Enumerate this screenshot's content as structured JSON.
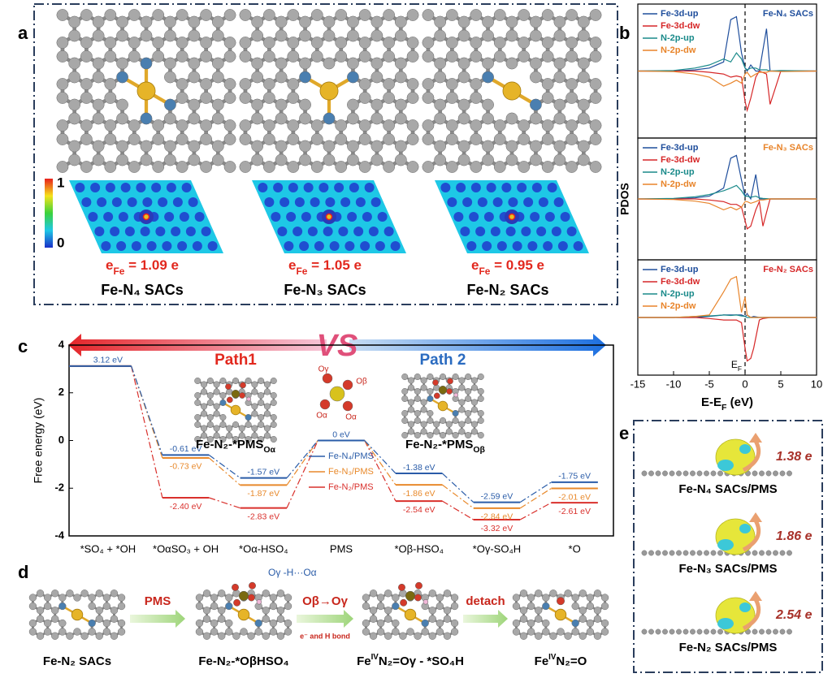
{
  "panel_labels": [
    "a",
    "b",
    "c",
    "d",
    "e"
  ],
  "panel_a": {
    "colorbar": {
      "max": "1",
      "min": "0"
    },
    "structures": [
      {
        "name": "Fe-N₄ SACs",
        "charge": {
          "symbol": "e",
          "subscript": "Fe",
          "text": " = 1.09 e"
        }
      },
      {
        "name": "Fe-N₃ SACs",
        "charge": {
          "symbol": "e",
          "subscript": "Fe",
          "text": " = 1.05 e"
        }
      },
      {
        "name": "Fe-N₂ SACs",
        "charge": {
          "symbol": "e",
          "subscript": "Fe",
          "text": " = 0.95 e"
        }
      }
    ]
  },
  "panel_c": {
    "vs": "VS",
    "path1": "Path1",
    "path2": "Path 2",
    "inset1": {
      "text": "Fe-N₂-*PMS",
      "sub": "Oα"
    },
    "inset2": {
      "text": "Fe-N₂-*PMS",
      "sub": "Oβ"
    },
    "pms_labels": [
      "Oγ",
      "Oβ",
      "Oα",
      "Oα"
    ]
  },
  "panel_d": {
    "annotation": "Oγ -H···Oα",
    "arrows": [
      "PMS",
      "Oβ→Oγ",
      "detach"
    ],
    "arrow_note": "e⁻ and H bond",
    "steps": [
      {
        "text": "Fe-N₂ SACs"
      },
      {
        "text": "Fe-N₂-*OβHSO₄"
      },
      {
        "text": "Fe",
        "sup": "IV",
        "rest": "N₂=Oγ - *SO₄H"
      },
      {
        "text": "Fe",
        "sup": "IV",
        "rest": "N₂=O"
      }
    ]
  },
  "panel_e": {
    "items": [
      {
        "name": "Fe-N₄ SACs/PMS",
        "charge": "1.38 e"
      },
      {
        "name": "Fe-N₃ SACs/PMS",
        "charge": "1.86 e"
      },
      {
        "name": "Fe-N₂ SACs/PMS",
        "charge": "2.54 e"
      }
    ]
  },
  "chart_data": [
    {
      "type": "line",
      "title": "Fe-N₄ SACs",
      "title_color": "#1f4e9c",
      "xlim": [
        -15,
        10
      ],
      "ylim": [
        -1,
        1
      ],
      "x": [
        -15,
        -10,
        -7,
        -5,
        -3,
        -2,
        -1.2,
        -0.5,
        0,
        0.3,
        0.8,
        1.5,
        2,
        3,
        3.5,
        5,
        10
      ],
      "series": [
        {
          "name": "Fe-3d-up",
          "color": "#1f4e9c",
          "values": [
            0,
            0,
            0.02,
            0.05,
            0.15,
            0.85,
            0.9,
            0.3,
            0.05,
            0,
            0.1,
            0,
            0,
            0.7,
            0,
            0,
            0
          ]
        },
        {
          "name": "Fe-3d-dw",
          "color": "#d62728",
          "values": [
            0,
            0,
            0,
            -0.02,
            -0.05,
            -0.1,
            -0.08,
            -0.1,
            -0.5,
            -0.65,
            -0.45,
            -0.1,
            0,
            -0.05,
            -0.55,
            0,
            0
          ]
        },
        {
          "name": "N-2p-up",
          "color": "#1a8a8a",
          "values": [
            0,
            0.01,
            0.05,
            0.1,
            0.2,
            0.15,
            0.3,
            0.2,
            0.05,
            0.02,
            0.05,
            0.05,
            0.02,
            0.02,
            0,
            0.01,
            0
          ]
        },
        {
          "name": "N-2p-dw",
          "color": "#e8842a",
          "values": [
            0,
            -0.01,
            -0.05,
            -0.1,
            -0.25,
            -0.2,
            -0.15,
            -0.2,
            -0.05,
            -0.02,
            -0.1,
            -0.05,
            -0.02,
            -0.02,
            0,
            -0.01,
            0
          ]
        }
      ]
    },
    {
      "type": "line",
      "title": "Fe-N₃ SACs",
      "title_color": "#e8842a",
      "ylabel": "PDOS",
      "xlim": [
        -15,
        10
      ],
      "ylim": [
        -1,
        1
      ],
      "x": [
        -15,
        -10,
        -7,
        -5,
        -3,
        -2,
        -1.2,
        -0.5,
        0,
        0.3,
        0.8,
        1.5,
        2,
        2.5,
        3.5,
        5,
        10
      ],
      "series": [
        {
          "name": "Fe-3d-up",
          "color": "#1f4e9c",
          "values": [
            0,
            0,
            0.02,
            0.05,
            0.2,
            0.75,
            0.8,
            0.35,
            0.05,
            0.1,
            0,
            0.45,
            0,
            0,
            0,
            0,
            0
          ]
        },
        {
          "name": "Fe-3d-dw",
          "color": "#d62728",
          "values": [
            0,
            0,
            0,
            -0.02,
            -0.05,
            -0.1,
            -0.1,
            -0.15,
            -0.4,
            -0.55,
            -0.5,
            -0.2,
            -0.05,
            -0.5,
            0,
            0,
            0
          ]
        },
        {
          "name": "N-2p-up",
          "color": "#1a8a8a",
          "values": [
            0,
            0.01,
            0.04,
            0.08,
            0.15,
            0.2,
            0.25,
            0.15,
            0.05,
            0.05,
            0.03,
            0.05,
            0.02,
            0.01,
            0,
            0,
            0
          ]
        },
        {
          "name": "N-2p-dw",
          "color": "#e8842a",
          "values": [
            0,
            -0.01,
            -0.04,
            -0.08,
            -0.2,
            -0.15,
            -0.2,
            -0.15,
            -0.05,
            -0.05,
            -0.08,
            -0.05,
            -0.02,
            -0.02,
            0,
            0,
            0
          ]
        }
      ]
    },
    {
      "type": "line",
      "title": "Fe-N₂ SACs",
      "title_color": "#d62728",
      "xlim": [
        -15,
        10
      ],
      "ylim": [
        -1,
        1
      ],
      "xticks": [
        -15,
        -10,
        -5,
        0,
        5,
        10
      ],
      "xlabel": {
        "text": "E-E",
        "sub": "F",
        "rest": " (eV)"
      },
      "annotation": {
        "text": "E",
        "sub": "F"
      },
      "x": [
        -15,
        -10,
        -7,
        -5,
        -3,
        -2,
        -1.2,
        -0.5,
        0,
        0.3,
        0.8,
        1.2,
        2,
        2.5,
        3.5,
        5,
        10
      ],
      "series": [
        {
          "name": "Fe-3d-up",
          "color": "#1f4e9c",
          "values": [
            0,
            0,
            0,
            0.02,
            0.05,
            0.05,
            0.05,
            0.05,
            0.02,
            0.05,
            0,
            0.02,
            0,
            0,
            0,
            0,
            0
          ]
        },
        {
          "name": "Fe-3d-dw",
          "color": "#d62728",
          "values": [
            0,
            0,
            0,
            -0.02,
            -0.05,
            -0.05,
            -0.05,
            -0.1,
            -0.6,
            -0.85,
            -0.8,
            -0.6,
            -0.05,
            -0.02,
            0,
            0,
            0
          ]
        },
        {
          "name": "N-2p-up",
          "color": "#1a8a8a",
          "values": [
            0,
            0,
            0.02,
            0.03,
            0.05,
            0.04,
            0.05,
            0.03,
            0.02,
            0,
            0,
            0,
            0,
            0,
            0,
            0,
            0
          ]
        },
        {
          "name": "N-2p-dw",
          "color": "#e8842a",
          "values": [
            0,
            0,
            0.02,
            0.05,
            0.5,
            0.75,
            0.8,
            0.1,
            0.4,
            0.05,
            0,
            0,
            0,
            0,
            0,
            0,
            0
          ]
        }
      ]
    },
    {
      "type": "levels",
      "ylabel": "Free energy (eV)",
      "ylim": [
        -4,
        4
      ],
      "yticks": [
        -4,
        -2,
        0,
        2,
        4
      ],
      "categories": [
        "*SO₄ + *OH",
        "*OαSO₃ + OH",
        "*Oα-HSO₄",
        "PMS",
        "*Oβ-HSO₄",
        "*Oγ-SO₄H",
        "*O"
      ],
      "series": [
        {
          "name": "Fe-N₄/PMS",
          "color": "#2a5ca8",
          "values": [
            3.12,
            -0.61,
            -1.57,
            0,
            -1.38,
            -2.59,
            -1.75
          ],
          "value_labels": [
            "3.12 eV",
            "-0.61 eV",
            "-1.57 eV",
            "0 eV",
            "-1.38 eV",
            "-2.59 eV",
            "-1.75 eV"
          ]
        },
        {
          "name": "Fe-N₃/PMS",
          "color": "#e8892b",
          "values": [
            3.12,
            -0.73,
            -1.87,
            0,
            -1.86,
            -2.84,
            -2.01
          ],
          "value_labels": [
            null,
            "-0.73 eV",
            "-1.87 eV",
            null,
            "-1.86 eV",
            "-2.84 eV",
            "-2.01 eV"
          ]
        },
        {
          "name": "Fe-N₂/PMS",
          "color": "#d9302c",
          "values": [
            3.12,
            -2.4,
            -2.83,
            0,
            -2.54,
            -3.32,
            -2.61
          ],
          "value_labels": [
            null,
            "-2.40 eV",
            "-2.83 eV",
            null,
            "-2.54 eV",
            "-3.32 eV",
            "-2.61 eV"
          ]
        }
      ]
    }
  ]
}
